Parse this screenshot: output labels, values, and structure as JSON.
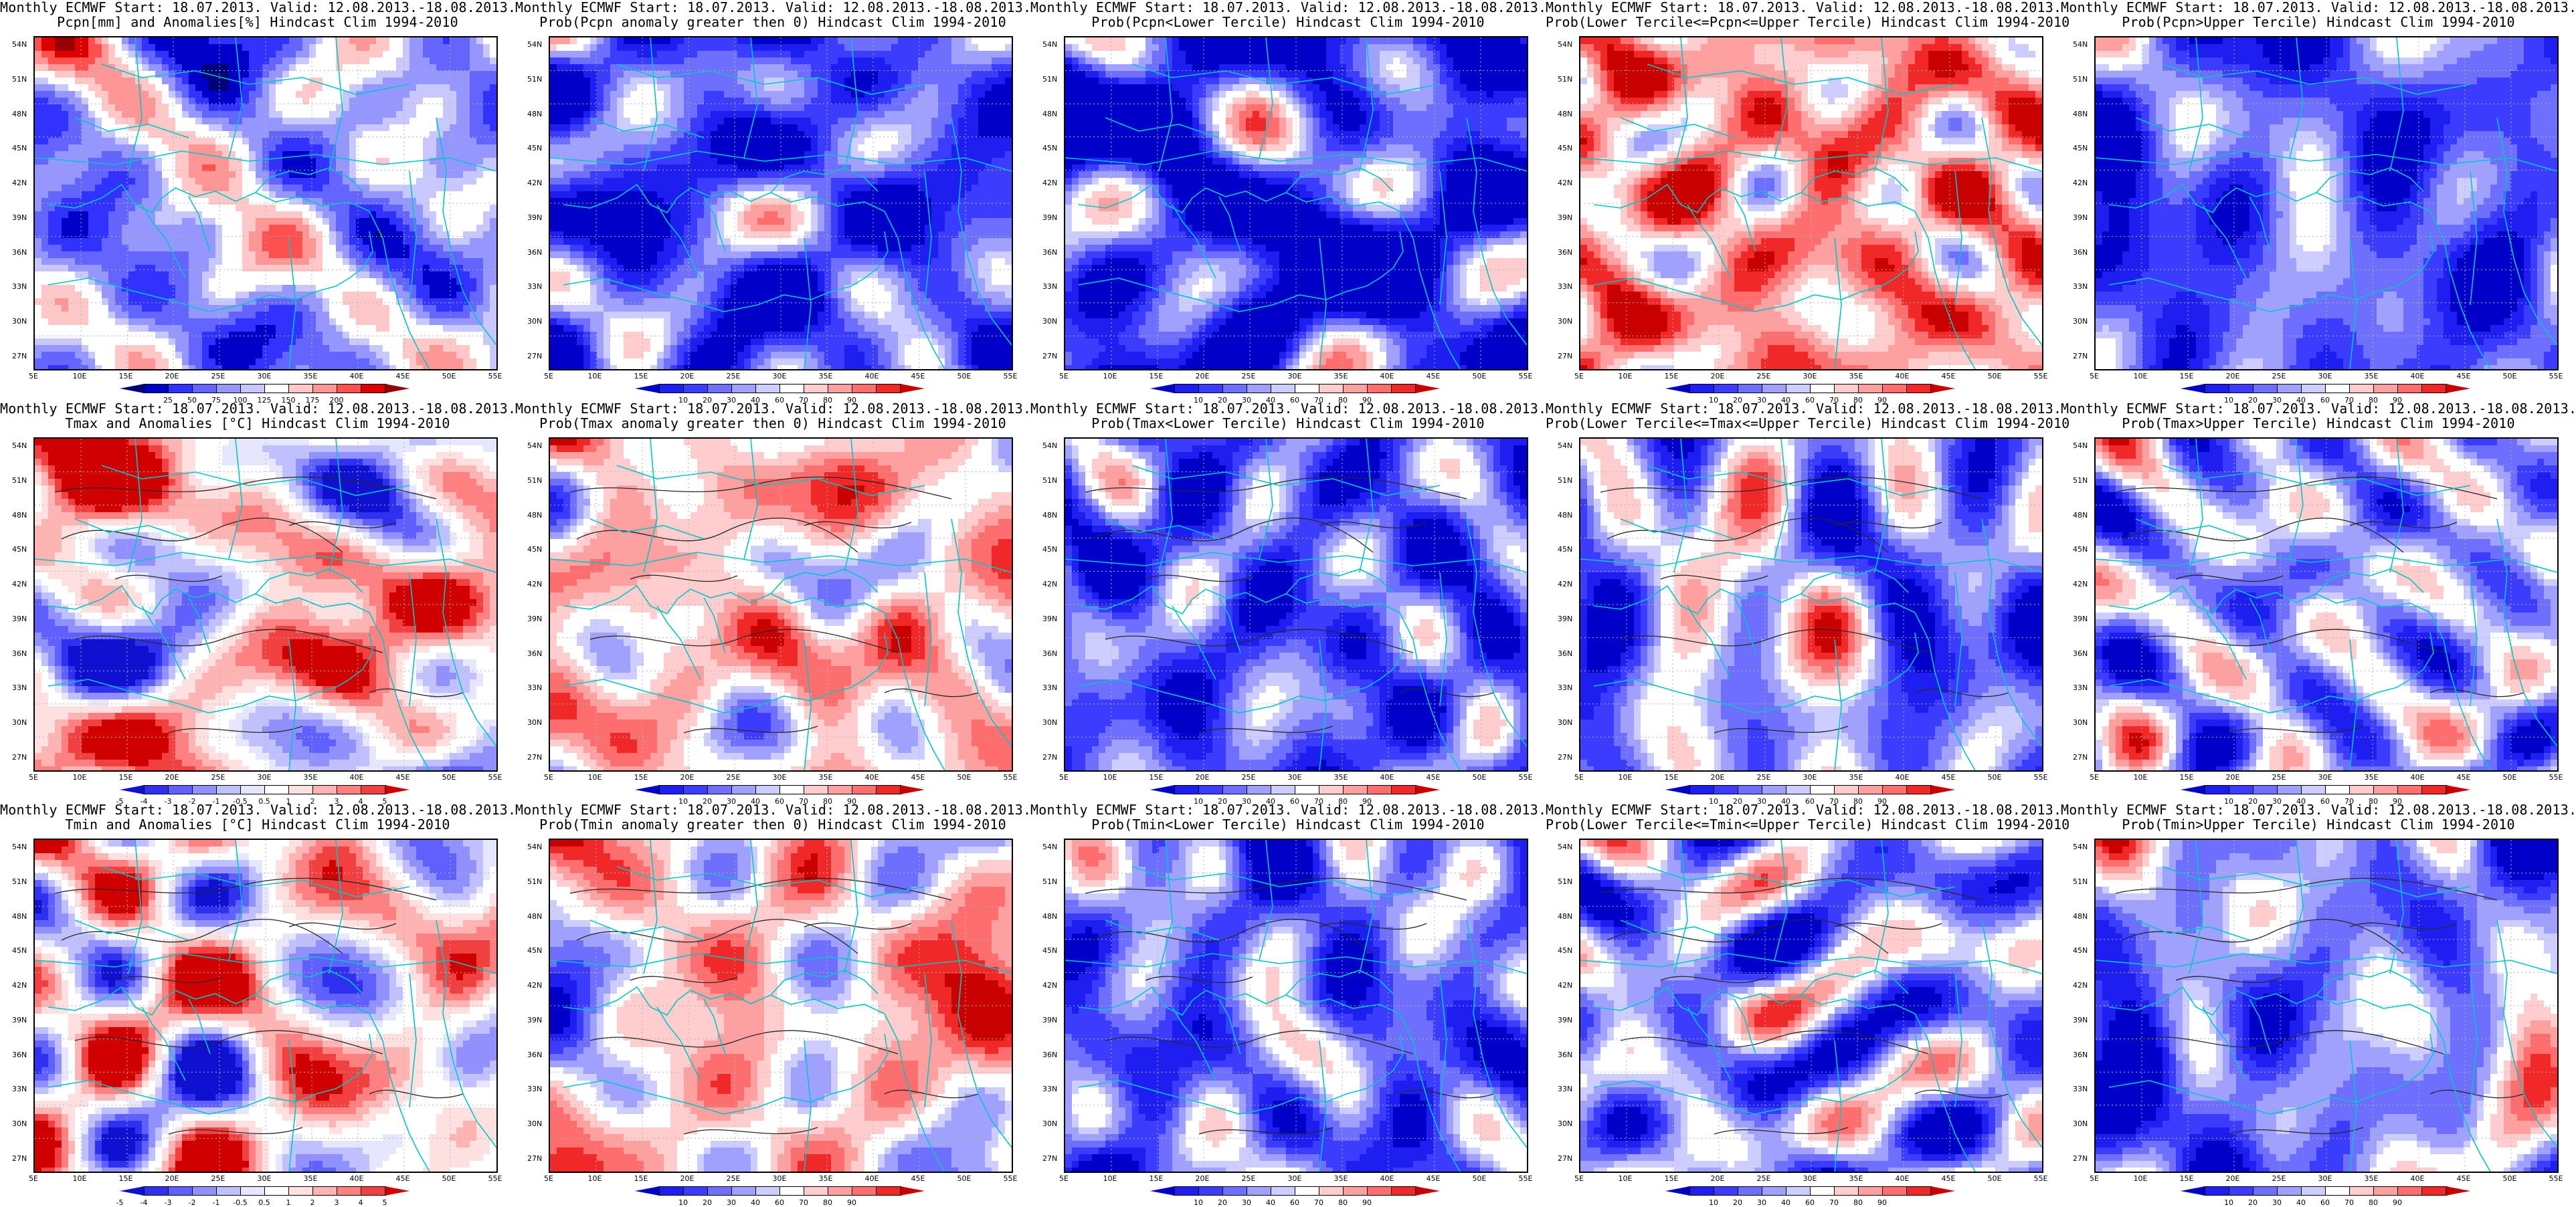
{
  "palettes": {
    "prob_cb": [
      "#0000c8",
      "#1e1ef0",
      "#3c3cff",
      "#6e6eff",
      "#a0a0ff",
      "#cdcdff",
      "#ffffff",
      "#ffcdcd",
      "#ffa0a0",
      "#ff6e6e",
      "#f02828",
      "#c80000"
    ],
    "anom_cb": [
      "#1010d0",
      "#3030f0",
      "#6060ff",
      "#9090ff",
      "#c0c0ff",
      "#e6e6ff",
      "#ffffff",
      "#ffe0e0",
      "#ffb4b4",
      "#ff8080",
      "#f04040",
      "#d00000"
    ],
    "pcpn_cb": [
      "#000078",
      "#0000c8",
      "#3232ff",
      "#6464ff",
      "#9696ff",
      "#c8c8ff",
      "#ffffff",
      "#ffc8c8",
      "#ff9696",
      "#ff5050",
      "#dc0000",
      "#960000"
    ]
  },
  "colors": {
    "coast": "#00c8c8",
    "contour": "#282828",
    "grid": "#b4b4b4"
  },
  "axes": {
    "x_ticks": [
      "5E",
      "10E",
      "15E",
      "20E",
      "25E",
      "30E",
      "35E",
      "40E",
      "45E",
      "50E",
      "55E"
    ],
    "y_ticks": [
      "54N",
      "51N",
      "48N",
      "45N",
      "42N",
      "39N",
      "36N",
      "33N",
      "30N",
      "27N"
    ]
  },
  "panels": [
    {
      "title1": "Monthly ECMWF Start: 18.07.2013. Valid: 12.08.2013.-18.08.2013.",
      "title2": "Pcpn[mm] and Anomalies[%] Hindcast Clim 1994-2010",
      "pal": "pcpn_cb",
      "bias": -0.2,
      "seed": 11,
      "cb": [
        "25",
        "50",
        "75",
        "100",
        "125",
        "150",
        "175",
        "200"
      ]
    },
    {
      "title1": "Monthly ECMWF Start: 18.07.2013. Valid: 12.08.2013.-18.08.2013.",
      "title2": "Prob(Pcpn anomaly greater then 0) Hindcast Clim 1994-2010",
      "pal": "prob_cb",
      "bias": -0.6,
      "seed": 23,
      "cb": [
        "10",
        "20",
        "30",
        "40",
        "60",
        "70",
        "80",
        "90"
      ]
    },
    {
      "title1": "Monthly ECMWF Start: 18.07.2013. Valid: 12.08.2013.-18.08.2013.",
      "title2": "Prob(Pcpn<Lower Tercile) Hindcast Clim 1994-2010",
      "pal": "prob_cb",
      "bias": -0.75,
      "seed": 37,
      "cb": [
        "10",
        "20",
        "30",
        "40",
        "60",
        "70",
        "80",
        "90"
      ]
    },
    {
      "title1": "Monthly ECMWF Start: 18.07.2013. Valid: 12.08.2013.-18.08.2013.",
      "title2": "Prob(Lower Tercile<=Pcpn<=Upper Tercile) Hindcast Clim 1994-2010",
      "pal": "prob_cb",
      "bias": 0.45,
      "seed": 41,
      "cb": [
        "10",
        "20",
        "30",
        "40",
        "60",
        "70",
        "80",
        "90"
      ]
    },
    {
      "title1": "Monthly ECMWF Start: 18.07.2013. Valid: 12.08.2013.-18.08.2013.",
      "title2": "Prob(Pcpn>Upper Tercile) Hindcast Clim 1994-2010",
      "pal": "prob_cb",
      "bias": -0.55,
      "seed": 53,
      "cb": [
        "10",
        "20",
        "30",
        "40",
        "60",
        "70",
        "80",
        "90"
      ]
    },
    {
      "title1": "Monthly ECMWF Start: 18.07.2013. Valid: 12.08.2013.-18.08.2013.",
      "title2": "Tmax and Anomalies [°C] Hindcast Clim 1994-2010",
      "pal": "anom_cb",
      "bias": 0.18,
      "seed": 61,
      "cb": [
        "-5",
        "-4",
        "-3",
        "-2",
        "-1",
        "-0.5",
        "0.5",
        "1",
        "2",
        "3",
        "4",
        "5"
      ]
    },
    {
      "title1": "Monthly ECMWF Start: 18.07.2013. Valid: 12.08.2013.-18.08.2013.",
      "title2": "Prob(Tmax anomaly greater then 0) Hindcast Clim 1994-2010",
      "pal": "prob_cb",
      "bias": 0.25,
      "seed": 67,
      "cb": [
        "10",
        "20",
        "30",
        "40",
        "60",
        "70",
        "80",
        "90"
      ]
    },
    {
      "title1": "Monthly ECMWF Start: 18.07.2013. Valid: 12.08.2013.-18.08.2013.",
      "title2": "Prob(Tmax<Lower Tercile) Hindcast Clim 1994-2010",
      "pal": "prob_cb",
      "bias": -0.55,
      "seed": 71,
      "cb": [
        "10",
        "20",
        "30",
        "40",
        "60",
        "70",
        "80",
        "90"
      ]
    },
    {
      "title1": "Monthly ECMWF Start: 18.07.2013. Valid: 12.08.2013.-18.08.2013.",
      "title2": "Prob(Lower Tercile<=Tmax<=Upper Tercile) Hindcast Clim 1994-2010",
      "pal": "prob_cb",
      "bias": -0.3,
      "seed": 79,
      "cb": [
        "10",
        "20",
        "30",
        "40",
        "60",
        "70",
        "80",
        "90"
      ]
    },
    {
      "title1": "Monthly ECMWF Start: 18.07.2013. Valid: 12.08.2013.-18.08.2013.",
      "title2": "Prob(Tmax>Upper Tercile) Hindcast Clim 1994-2010",
      "pal": "prob_cb",
      "bias": -0.25,
      "seed": 83,
      "cb": [
        "10",
        "20",
        "30",
        "40",
        "60",
        "70",
        "80",
        "90"
      ]
    },
    {
      "title1": "Monthly ECMWF Start: 18.07.2013. Valid: 12.08.2013.-18.08.2013.",
      "title2": "Tmin and Anomalies [°C] Hindcast Clim 1994-2010",
      "pal": "anom_cb",
      "bias": 0.15,
      "seed": 89,
      "cb": [
        "-5",
        "-4",
        "-3",
        "-2",
        "-1",
        "-0.5",
        "0.5",
        "1",
        "2",
        "3",
        "4",
        "5"
      ]
    },
    {
      "title1": "Monthly ECMWF Start: 18.07.2013. Valid: 12.08.2013.-18.08.2013.",
      "title2": "Prob(Tmin anomaly greater then 0) Hindcast Clim 1994-2010",
      "pal": "prob_cb",
      "bias": 0.2,
      "seed": 97,
      "cb": [
        "10",
        "20",
        "30",
        "40",
        "60",
        "70",
        "80",
        "90"
      ]
    },
    {
      "title1": "Monthly ECMWF Start: 18.07.2013. Valid: 12.08.2013.-18.08.2013.",
      "title2": "Prob(Tmin<Lower Tercile) Hindcast Clim 1994-2010",
      "pal": "prob_cb",
      "bias": -0.45,
      "seed": 101,
      "cb": [
        "10",
        "20",
        "30",
        "40",
        "60",
        "70",
        "80",
        "90"
      ]
    },
    {
      "title1": "Monthly ECMWF Start: 18.07.2013. Valid: 12.08.2013.-18.08.2013.",
      "title2": "Prob(Lower Tercile<=Tmin<=Upper Tercile) Hindcast Clim 1994-2010",
      "pal": "prob_cb",
      "bias": -0.3,
      "seed": 107,
      "cb": [
        "10",
        "20",
        "30",
        "40",
        "60",
        "70",
        "80",
        "90"
      ]
    },
    {
      "title1": "Monthly ECMWF Start: 18.07.2013. Valid: 12.08.2013.-18.08.2013.",
      "title2": "Prob(Tmin>Upper Tercile) Hindcast Clim 1994-2010",
      "pal": "prob_cb",
      "bias": -0.35,
      "seed": 113,
      "cb": [
        "10",
        "20",
        "30",
        "40",
        "60",
        "70",
        "80",
        "90"
      ]
    }
  ]
}
